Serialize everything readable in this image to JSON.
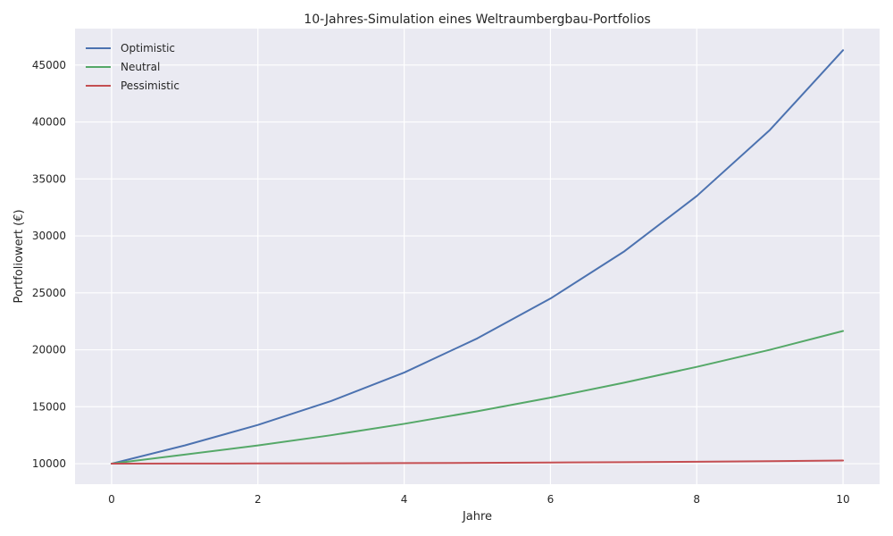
{
  "chart_data": {
    "type": "line",
    "title": "10-Jahres-Simulation eines Weltraumbergbau-Portfolios",
    "xlabel": "Jahre",
    "ylabel": "Portfoliowert (€)",
    "x": [
      0,
      1,
      2,
      3,
      4,
      5,
      6,
      7,
      8,
      9,
      10
    ],
    "xlim": [
      -0.5,
      10.5
    ],
    "ylim": [
      8200,
      48200
    ],
    "xticks": [
      0,
      2,
      4,
      6,
      8,
      10
    ],
    "yticks": [
      10000,
      15000,
      20000,
      25000,
      30000,
      35000,
      40000,
      45000
    ],
    "grid": true,
    "legend_position": "top-left",
    "series": [
      {
        "name": "Optimistic",
        "color": "#4c72b0",
        "values": [
          10000,
          11600,
          13400,
          15500,
          18000,
          21000,
          24500,
          28600,
          33500,
          39300,
          46300
        ]
      },
      {
        "name": "Neutral",
        "color": "#55a868",
        "values": [
          10000,
          10800,
          11600,
          12500,
          13500,
          14600,
          15800,
          17100,
          18500,
          20000,
          21650
        ]
      },
      {
        "name": "Pessimistic",
        "color": "#c44e52",
        "values": [
          10000,
          10010,
          10020,
          10030,
          10050,
          10070,
          10100,
          10130,
          10170,
          10220,
          10280
        ]
      }
    ]
  }
}
